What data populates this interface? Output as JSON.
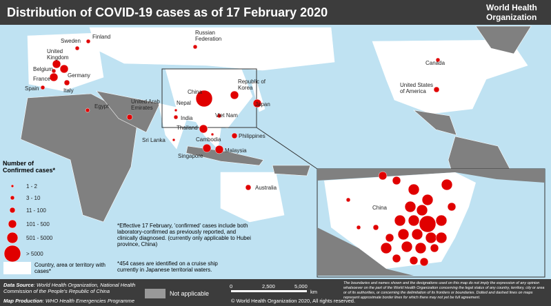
{
  "header": {
    "title": "Distribution of COVID-19 cases as of 17 February 2020",
    "org": [
      "World Health",
      "Organization"
    ]
  },
  "countries": [
    "Finland",
    "Sweden",
    "United Kingdom",
    "Belgium",
    "Germany",
    "France",
    "Spain",
    "Italy",
    "Russian Federation",
    "Egypt",
    "United Arab Emirates",
    "Nepal",
    "India",
    "China",
    "Republic of Korea",
    "Japan",
    "Viet Nam",
    "Thailand",
    "Cambodia",
    "Philippines",
    "Sri Lanka",
    "Singapore",
    "Malaysia",
    "Australia",
    "Canada",
    "United States of America"
  ],
  "inset": {
    "label": "China"
  },
  "legend": {
    "title": "Number of Confirmed cases*",
    "classes": [
      "1 - 2",
      "3 - 10",
      "11 - 100",
      "101 - 500",
      "501 - 5000",
      "> 5000"
    ],
    "with_cases": "Country, area or territory with cases*",
    "not_applicable": "Not applicable"
  },
  "notes": [
    "*Effective 17 February, 'confirmed' cases include both laboratory-confirmed as previously reported, and clinically diagnosed. (currently only applicable to Hubei province, China)",
    "*454 cases are identified on a cruise ship currently in Japanese territorial waters."
  ],
  "footer": {
    "source_label": "Data Source",
    "source": "World Health Organization, National Health Commission of the People's Republic of China",
    "production_label": "Map Production",
    "production": "WHO Health Emergencies Programme",
    "scale": [
      "0",
      "2,500",
      "5,000",
      "km"
    ],
    "copyright": "© World Health Organization 2020, All rights reserved.",
    "disclaimer": "The boundaries and names shown and the designations used on this map do not imply the expression of any opinion whatsoever on the part of the World Health Organization concerning the legal status of any country, territory, city or area or of its authorities, or concerning the delimitation of its frontiers or boundaries. Dotted and dashed lines on maps represent approximate border lines for which there may not yet be full agreement."
  }
}
